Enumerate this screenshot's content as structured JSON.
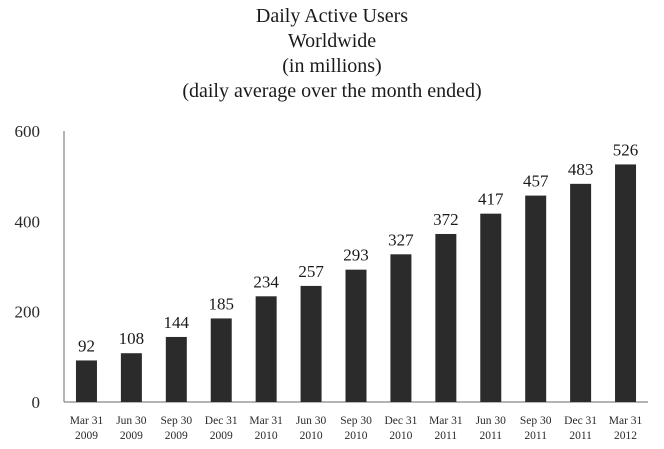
{
  "chart_data": {
    "type": "bar",
    "title": [
      "Daily Active Users",
      "Worldwide",
      "(in millions)",
      "(daily average over the month ended)"
    ],
    "categories": [
      [
        "Mar 31",
        "2009"
      ],
      [
        "Jun 30",
        "2009"
      ],
      [
        "Sep 30",
        "2009"
      ],
      [
        "Dec 31",
        "2009"
      ],
      [
        "Mar 31",
        "2010"
      ],
      [
        "Jun 30",
        "2010"
      ],
      [
        "Sep 30",
        "2010"
      ],
      [
        "Dec 31",
        "2010"
      ],
      [
        "Mar 31",
        "2011"
      ],
      [
        "Jun 30",
        "2011"
      ],
      [
        "Sep 30",
        "2011"
      ],
      [
        "Dec 31",
        "2011"
      ],
      [
        "Mar 31",
        "2012"
      ]
    ],
    "values": [
      92,
      108,
      144,
      185,
      234,
      257,
      293,
      327,
      372,
      417,
      457,
      483,
      526
    ],
    "ylim": [
      0,
      600
    ],
    "yticks": [
      0,
      200,
      400,
      600
    ],
    "grid": false,
    "bar_color": "#2b2b2b"
  }
}
